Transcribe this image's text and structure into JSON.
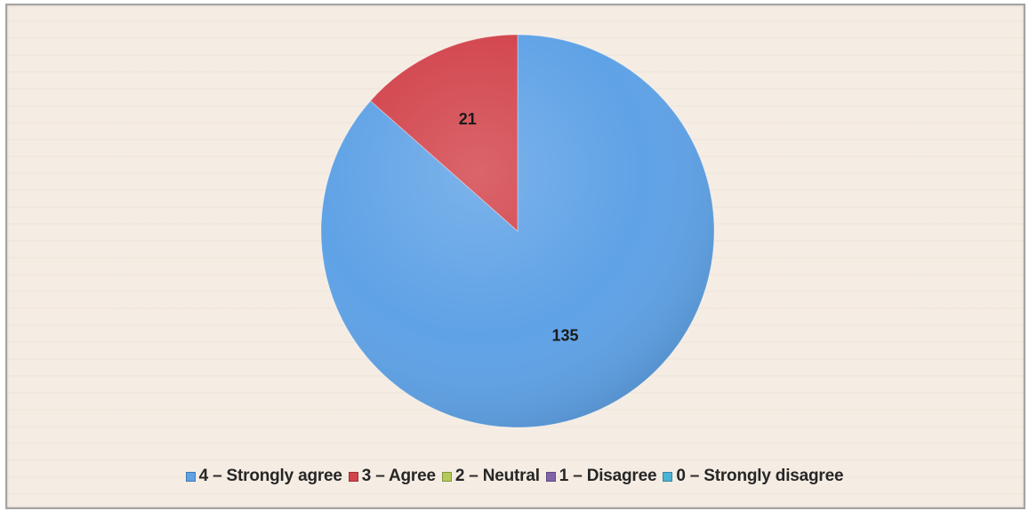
{
  "chart_data": {
    "type": "pie",
    "title": "",
    "slices": [
      {
        "label": "4 – Strongly agree",
        "value": 135,
        "color": "#5fa2e6"
      },
      {
        "label": "3 – Agree",
        "value": 21,
        "color": "#d2434b"
      },
      {
        "label": "2 – Neutral",
        "value": 0,
        "color": "#b3c95a"
      },
      {
        "label": "1 – Disagree",
        "value": 0,
        "color": "#8064a8"
      },
      {
        "label": "0 – Strongly disagree",
        "value": 0,
        "color": "#4bb3d6"
      }
    ],
    "data_labels": [
      "135",
      "21"
    ],
    "legend_position": "bottom",
    "start_angle_deg": 0,
    "direction": "clockwise"
  }
}
